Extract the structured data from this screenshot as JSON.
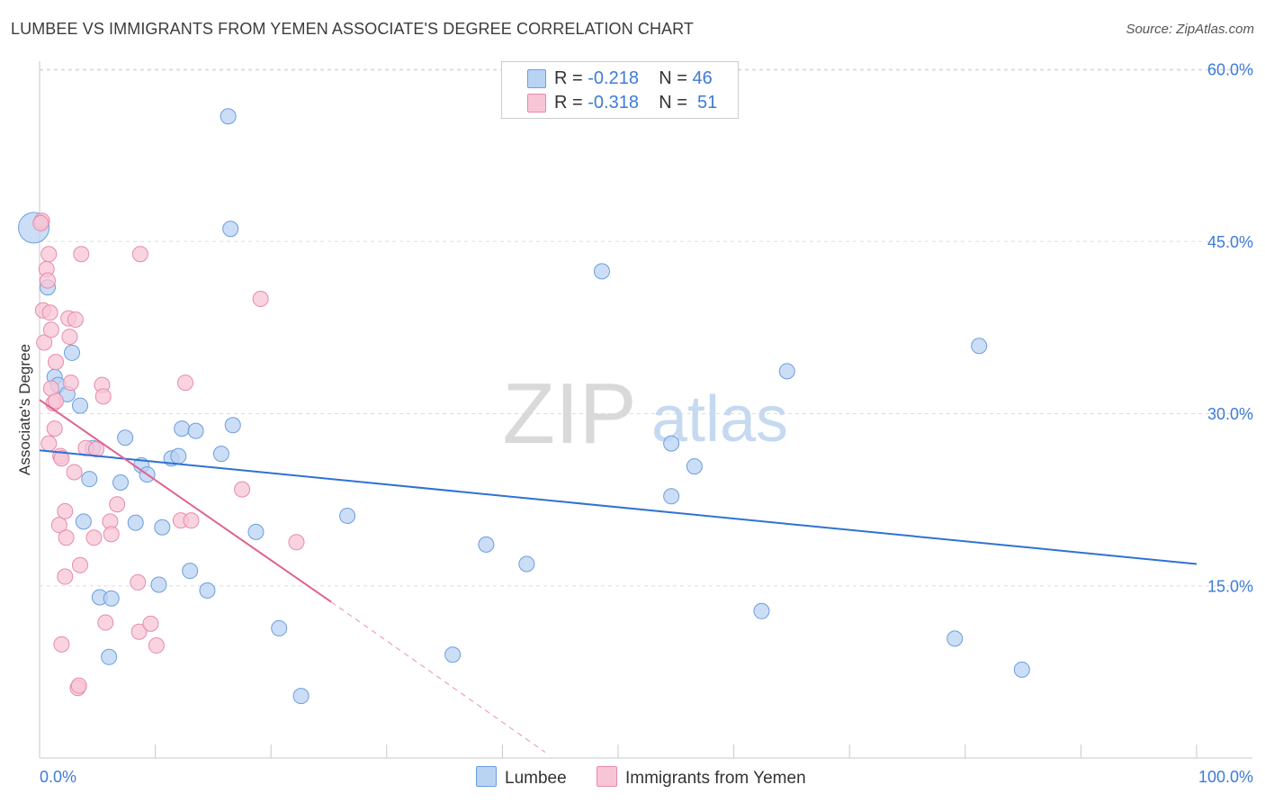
{
  "title": "LUMBEE VS IMMIGRANTS FROM YEMEN ASSOCIATE'S DEGREE CORRELATION CHART",
  "source": "Source: ZipAtlas.com",
  "watermark": {
    "zip": "ZIP",
    "atlas": "atlas"
  },
  "legend": {
    "r_label": "R =",
    "n_label": "N =",
    "items": [
      {
        "name": "Lumbee",
        "r": "-0.218",
        "n": "46"
      },
      {
        "name": "Immigrants from Yemen",
        "r": "-0.318",
        "n": "51"
      }
    ]
  },
  "chart_data": {
    "type": "scatter",
    "title": "LUMBEE VS IMMIGRANTS FROM YEMEN ASSOCIATE'S DEGREE CORRELATION CHART",
    "xlabel": "",
    "ylabel": "Associate's Degree",
    "xlim": [
      0,
      100
    ],
    "ylim": [
      0,
      63
    ],
    "x_tick_labels": [
      "0.0%",
      "100.0%"
    ],
    "y_ticks": [
      15,
      30,
      45,
      60
    ],
    "y_tick_labels": [
      "15.0%",
      "30.0%",
      "45.0%",
      "60.0%"
    ],
    "grid": true,
    "legend_position": "top-center",
    "colors": {
      "lumbee_fill": "#b9d3f3",
      "lumbee_stroke": "#6b9de0",
      "lumbee_line": "#2f72d2",
      "yemen_fill": "#f7c5d5",
      "yemen_stroke": "#e88aab",
      "yemen_line": "#e0628f",
      "tick_label": "#3d7bd9",
      "grid": "#dddddd"
    },
    "series": [
      {
        "name": "Lumbee",
        "points": [
          [
            -0.5,
            46.2
          ],
          [
            0.7,
            41.0
          ],
          [
            1.3,
            33.2
          ],
          [
            1.6,
            32.5
          ],
          [
            2.4,
            31.7
          ],
          [
            2.8,
            35.3
          ],
          [
            3.5,
            30.7
          ],
          [
            3.8,
            20.6
          ],
          [
            4.3,
            24.3
          ],
          [
            4.6,
            27.0
          ],
          [
            5.2,
            14.0
          ],
          [
            6.2,
            13.9
          ],
          [
            6.0,
            8.8
          ],
          [
            7.0,
            24.0
          ],
          [
            7.4,
            27.9
          ],
          [
            8.3,
            20.5
          ],
          [
            8.8,
            25.5
          ],
          [
            9.3,
            24.7
          ],
          [
            10.3,
            15.1
          ],
          [
            10.6,
            20.1
          ],
          [
            11.4,
            26.1
          ],
          [
            12.0,
            26.3
          ],
          [
            12.3,
            28.7
          ],
          [
            13.0,
            16.3
          ],
          [
            13.5,
            28.5
          ],
          [
            14.5,
            14.6
          ],
          [
            15.7,
            26.5
          ],
          [
            16.3,
            55.9
          ],
          [
            16.5,
            46.1
          ],
          [
            16.7,
            29.0
          ],
          [
            18.7,
            19.7
          ],
          [
            20.7,
            11.3
          ],
          [
            22.6,
            5.4
          ],
          [
            26.6,
            21.1
          ],
          [
            35.7,
            9.0
          ],
          [
            38.6,
            18.6
          ],
          [
            42.1,
            16.9
          ],
          [
            48.6,
            42.4
          ],
          [
            54.6,
            27.4
          ],
          [
            54.6,
            22.8
          ],
          [
            56.6,
            25.4
          ],
          [
            62.4,
            12.8
          ],
          [
            64.6,
            33.7
          ],
          [
            79.1,
            10.4
          ],
          [
            81.2,
            35.9
          ],
          [
            84.9,
            7.7
          ]
        ]
      },
      {
        "name": "Immigrants from Yemen",
        "points": [
          [
            0.2,
            46.8
          ],
          [
            0.3,
            39.0
          ],
          [
            0.4,
            36.2
          ],
          [
            0.6,
            42.6
          ],
          [
            0.7,
            41.6
          ],
          [
            0.8,
            27.4
          ],
          [
            0.8,
            43.9
          ],
          [
            0.9,
            38.8
          ],
          [
            1.0,
            37.3
          ],
          [
            1.0,
            32.2
          ],
          [
            1.2,
            30.9
          ],
          [
            1.3,
            28.7
          ],
          [
            1.4,
            34.5
          ],
          [
            1.4,
            31.1
          ],
          [
            1.7,
            20.3
          ],
          [
            1.8,
            26.3
          ],
          [
            1.9,
            26.1
          ],
          [
            1.9,
            9.9
          ],
          [
            2.2,
            21.5
          ],
          [
            2.2,
            15.8
          ],
          [
            2.3,
            19.2
          ],
          [
            2.5,
            38.3
          ],
          [
            2.6,
            36.7
          ],
          [
            2.7,
            32.7
          ],
          [
            3.0,
            24.9
          ],
          [
            3.1,
            38.2
          ],
          [
            3.3,
            6.1
          ],
          [
            3.4,
            6.3
          ],
          [
            3.5,
            16.8
          ],
          [
            3.6,
            43.9
          ],
          [
            4.0,
            27.0
          ],
          [
            4.7,
            19.2
          ],
          [
            4.9,
            26.9
          ],
          [
            5.4,
            32.5
          ],
          [
            5.5,
            31.5
          ],
          [
            5.7,
            11.8
          ],
          [
            6.1,
            20.6
          ],
          [
            6.2,
            19.5
          ],
          [
            6.7,
            22.1
          ],
          [
            8.5,
            15.3
          ],
          [
            8.6,
            11.0
          ],
          [
            8.7,
            43.9
          ],
          [
            9.6,
            11.7
          ],
          [
            10.1,
            9.8
          ],
          [
            12.2,
            20.7
          ],
          [
            12.6,
            32.7
          ],
          [
            13.1,
            20.7
          ],
          [
            17.5,
            23.4
          ],
          [
            19.1,
            40.0
          ],
          [
            22.2,
            18.8
          ],
          [
            0.1,
            46.6
          ]
        ]
      }
    ],
    "trend_lines": [
      {
        "series": "Lumbee",
        "x0": 0,
        "y0": 26.8,
        "x1": 100,
        "y1": 16.9,
        "style": "solid"
      },
      {
        "series": "Immigrants from Yemen",
        "x0": 0,
        "y0": 31.2,
        "x1": 25.2,
        "y1": 13.6,
        "style": "solid",
        "extension": {
          "x0": 25.2,
          "y0": 13.6,
          "x1": 43.7,
          "y1": 0.5,
          "style": "dashed"
        }
      }
    ]
  }
}
